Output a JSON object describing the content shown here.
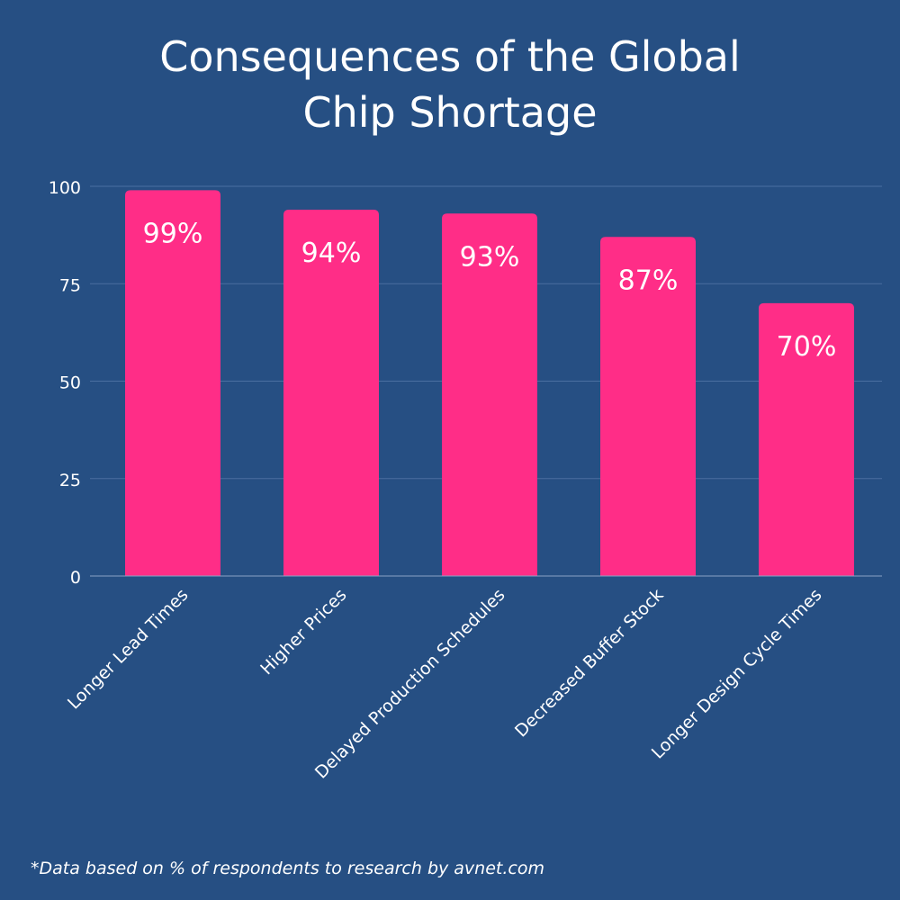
{
  "chart_data": {
    "type": "bar",
    "title_lines": [
      "Consequences of the Global",
      "Chip Shortage"
    ],
    "categories": [
      "Longer Lead Times",
      "Higher Prices",
      "Delayed Production Schedules",
      "Decreased Buffer Stock",
      "Longer Design Cycle Times"
    ],
    "values": [
      99,
      94,
      93,
      87,
      70
    ],
    "data_labels": [
      "99%",
      "94%",
      "93%",
      "87%",
      "70%"
    ],
    "xlabel": "",
    "ylabel": "",
    "ylim": [
      0,
      100
    ],
    "yticks": [
      0,
      25,
      50,
      75,
      100
    ],
    "ytick_labels": [
      "0",
      "25",
      "50",
      "75",
      "100"
    ],
    "grid": true,
    "bar_color": "#ff2d87",
    "background_color": "#264f83",
    "grid_color": "#4a6fa0",
    "text_color": "#ffffff"
  },
  "footnote": "*Data based on % of respondents to research by avnet.com"
}
